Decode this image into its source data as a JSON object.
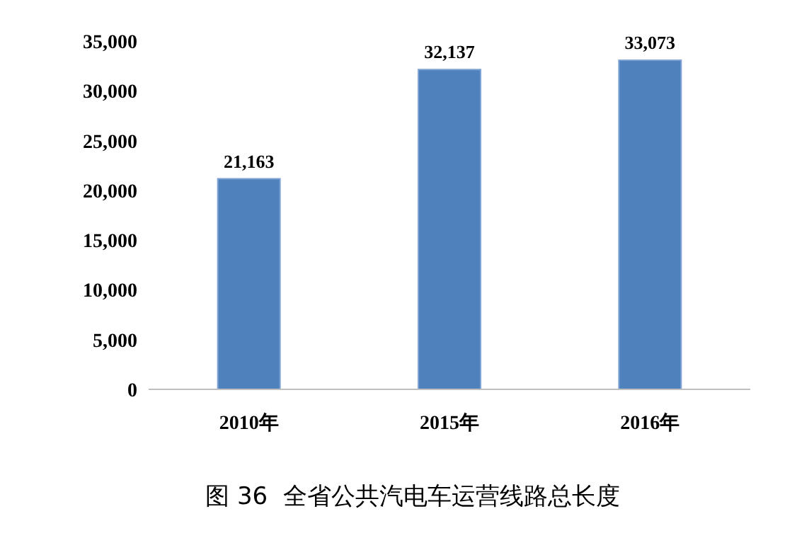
{
  "chart_data": {
    "type": "bar",
    "title": "图 36  全省公共汽电车运营线路总长度",
    "categories": [
      "2010年",
      "2015年",
      "2016年"
    ],
    "values": [
      21163,
      32137,
      33073
    ],
    "value_labels": [
      "21,163",
      "32,137",
      "33,073"
    ],
    "color": "#4f81bd",
    "ylim": [
      0,
      35000
    ],
    "yticks": [
      0,
      {
        "value": 5000,
        "label": "5,000"
      },
      {
        "value": 10000,
        "label": "10,000"
      },
      {
        "value": 15000,
        "label": "15,000"
      },
      {
        "value": 20000,
        "label": "20,000"
      },
      {
        "value": 25000,
        "label": "25,000"
      },
      {
        "value": 30000,
        "label": "30,000"
      },
      {
        "value": 35000,
        "label": "35,000"
      }
    ],
    "data_labels": false
  }
}
